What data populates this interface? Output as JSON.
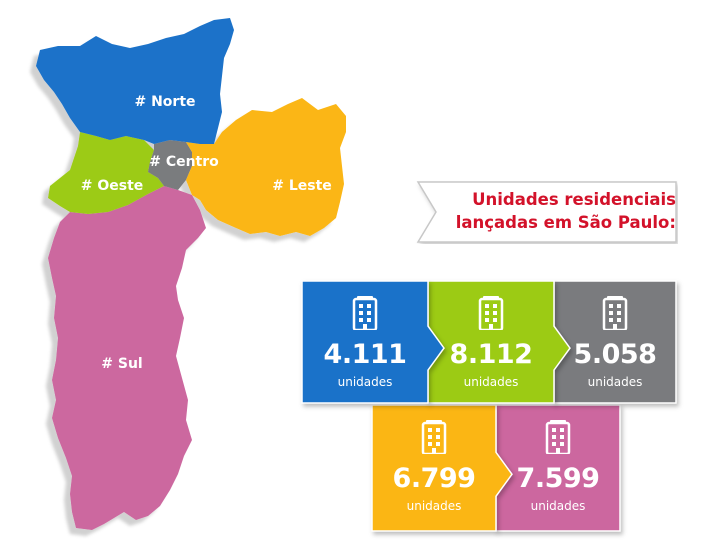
{
  "map": {
    "regions": [
      {
        "id": "norte",
        "label": "# Norte",
        "color": "#1a72c9"
      },
      {
        "id": "leste",
        "label": "# Leste",
        "color": "#fbb614"
      },
      {
        "id": "oeste",
        "label": "# Oeste",
        "color": "#9ccb14"
      },
      {
        "id": "centro",
        "label": "# Centro",
        "color": "#7a7b7e"
      },
      {
        "id": "sul",
        "label": "# Sul",
        "color": "#cc679f"
      }
    ]
  },
  "title": {
    "line1": "Unidades residenciais",
    "line2": "lançadas em São Paulo:",
    "color": "#d3122a"
  },
  "tiles": [
    {
      "region": "norte",
      "value": "4.111",
      "unit": "unidades",
      "color": "#1a72c9",
      "icon": "building-icon"
    },
    {
      "region": "oeste",
      "value": "8.112",
      "unit": "unidades",
      "color": "#9ccb14",
      "icon": "building-icon"
    },
    {
      "region": "centro",
      "value": "5.058",
      "unit": "unidades",
      "color": "#7a7b7e",
      "icon": "building-icon"
    },
    {
      "region": "leste",
      "value": "6.799",
      "unit": "unidades",
      "color": "#fbb614",
      "icon": "building-icon"
    },
    {
      "region": "sul",
      "value": "7.599",
      "unit": "unidades",
      "color": "#cc679f",
      "icon": "building-icon"
    }
  ]
}
